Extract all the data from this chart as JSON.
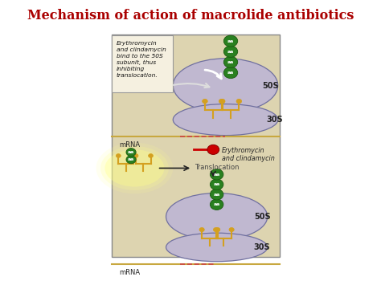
{
  "title": "Mechanism of action of macrolide antibiotics",
  "title_color": "#aa0000",
  "title_fontsize": 11.5,
  "bg_color": "#ffffff",
  "diagram_bg": "#ddd4b0",
  "ribosome_50s_color": "#c0b8d0",
  "ribosome_30s_color": "#c0b8d0",
  "trna_color": "#d4a020",
  "aa_color": "#2a8020",
  "label_50s": "50S",
  "label_30s": "30S",
  "label_mrna": "mRNA",
  "label_erythro": "Erythromycin\nand clindamycin",
  "label_translo": "Translocation",
  "callout_text": "Erythromycin\nand clindamycin\nbind to the 50S\nsubunit, thus\ninhibiting\ntranslocation.",
  "inhibit_color": "#cc0000",
  "arrow_color": "#222222",
  "mrna_color": "#c8a840",
  "mrna_dot_color": "#cc4444"
}
